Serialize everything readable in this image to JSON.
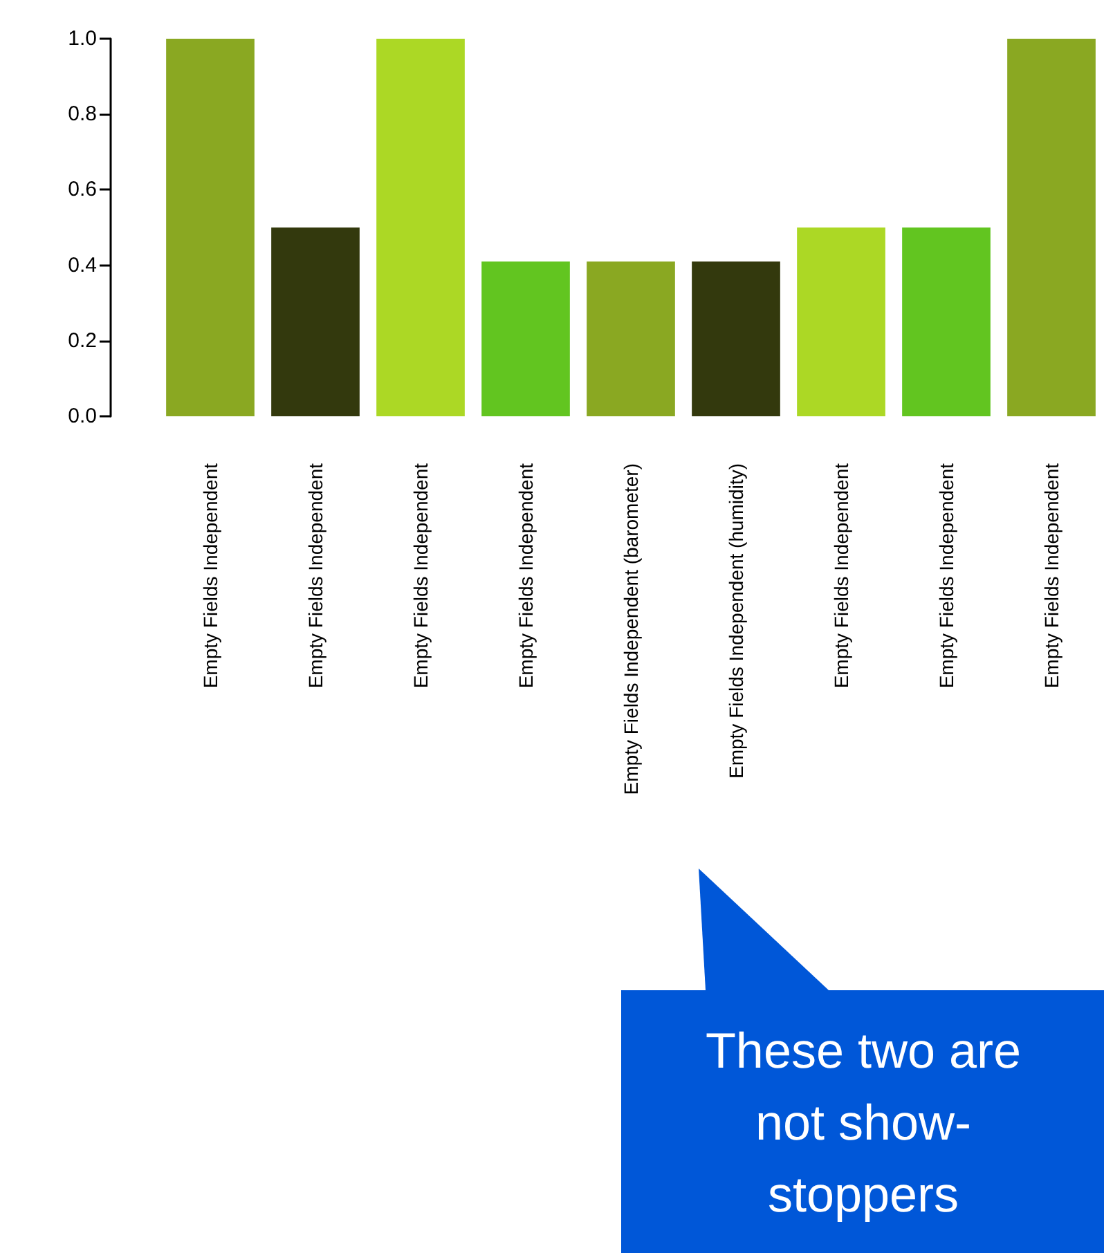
{
  "chart_data": {
    "type": "bar",
    "categories": [
      "Empty Fields Independent",
      "Empty Fields Independent",
      "Empty Fields Independent",
      "Empty Fields Independent",
      "Empty Fields Independent (barometer)",
      "Empty Fields Independent (humidity)",
      "Empty Fields Independent",
      "Empty Fields Independent",
      "Empty Fields Independent"
    ],
    "values": [
      1.0,
      0.5,
      1.0,
      0.41,
      0.41,
      0.41,
      0.5,
      0.5,
      1.0
    ],
    "colors": [
      "#8aa822",
      "#33390d",
      "#acd825",
      "#62c520",
      "#8aa822",
      "#33390d",
      "#acd825",
      "#62c520",
      "#8aa822"
    ],
    "ylim": [
      0,
      1.0
    ],
    "yticks": [
      {
        "value": 0,
        "label": "0.0"
      },
      {
        "value": 0.2,
        "label": "0.2"
      },
      {
        "value": 0.4,
        "label": "0.4"
      },
      {
        "value": 0.6,
        "label": "0.6"
      },
      {
        "value": 0.8,
        "label": "0.8"
      },
      {
        "value": 1,
        "label": "1.0"
      }
    ],
    "grid": false,
    "annotations": [
      "These two are not show-stoppers"
    ]
  }
}
